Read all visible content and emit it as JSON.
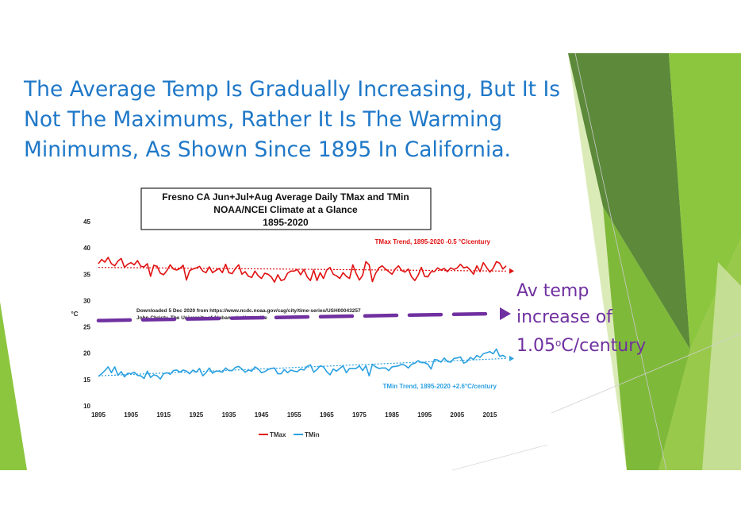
{
  "slide": {
    "headline_lines": [
      "The Average Temp Is Gradually Increasing, But It Is",
      "Not The Maximums, Rather It Is The Warming",
      "Minimums, As Shown Since 1895 In California."
    ],
    "callout": {
      "line1": "Av temp",
      "line2": "increase of",
      "line3_pre": "1.05",
      "line3_sup": "o",
      "line3_post": "C/century"
    },
    "colors": {
      "headline": "#1f78c8",
      "callout": "#7030a0",
      "tmax": "#e01010",
      "tmin": "#2aa0e0",
      "avg_dashes": "#7030a0",
      "deco_green": "#8cc63f"
    }
  },
  "chart_data": {
    "type": "line",
    "title_lines": [
      "Fresno CA Jun+Jul+Aug Average Daily TMax and TMin",
      "NOAA/NCEI Climate at a Glance",
      "1895-2020"
    ],
    "ylabel": "°C",
    "xlabel": "",
    "ylim": [
      10,
      45
    ],
    "xlim": [
      1895,
      2020
    ],
    "y_ticks": [
      10,
      15,
      20,
      25,
      30,
      35,
      40,
      45
    ],
    "x_ticks": [
      1895,
      1905,
      1915,
      1925,
      1935,
      1945,
      1955,
      1965,
      1975,
      1985,
      1995,
      2005,
      2015
    ],
    "x_tick_labels": [
      "1895",
      "1905",
      "1915",
      "1925",
      "1935",
      "1945",
      "1955",
      "1965",
      "1975",
      "1985",
      "1995",
      "2005",
      "2015"
    ],
    "legend": {
      "position": "bottom",
      "entries": [
        "TMax",
        "TMin"
      ]
    },
    "annotations": {
      "tmax_trend": "TMax Trend, 1895-2020 -0.5 °C/century",
      "tmin_trend": "TMin Trend, 1895-2020 +2.6°C/century",
      "download_line1": "Downloaded 5 Dec 2020 from https://www.ncdc.noaa.gov/cag/city/time-series/USH00043257",
      "download_line2": "John Christy, The University of Alabama in Huntsville"
    },
    "series": [
      {
        "name": "TMax",
        "x_start": 1895,
        "trend": [
          36.3,
          35.6
        ],
        "values": [
          37.0,
          37.8,
          37.3,
          38.2,
          37.0,
          36.6,
          37.5,
          38.0,
          36.3,
          36.9,
          37.2,
          36.8,
          37.6,
          36.5,
          36.4,
          37.0,
          34.6,
          36.7,
          36.5,
          35.2,
          34.9,
          35.7,
          36.8,
          36.0,
          35.8,
          36.1,
          36.7,
          33.9,
          35.7,
          36.0,
          36.2,
          36.5,
          35.6,
          35.3,
          36.4,
          35.3,
          35.7,
          36.1,
          35.3,
          36.9,
          35.3,
          35.1,
          36.1,
          36.8,
          35.0,
          35.5,
          34.6,
          34.4,
          35.6,
          34.7,
          34.2,
          35.2,
          35.0,
          34.5,
          33.5,
          34.9,
          33.8,
          34.0,
          35.2,
          35.6,
          35.6,
          35.9,
          34.9,
          35.9,
          34.5,
          33.8,
          35.8,
          33.8,
          35.3,
          34.2,
          35.8,
          36.3,
          35.0,
          34.7,
          34.2,
          35.3,
          34.6,
          34.2,
          36.8,
          35.2,
          33.9,
          34.8,
          37.4,
          36.8,
          33.6,
          35.2,
          36.2,
          36.6,
          36.0,
          35.5,
          35.0,
          36.0,
          36.6,
          35.7,
          35.4,
          36.0,
          34.5,
          33.8,
          34.8,
          36.3,
          34.6,
          34.5,
          35.5,
          35.5,
          36.2,
          35.8,
          36.1,
          35.5,
          36.2,
          35.9,
          36.2,
          36.9,
          36.2,
          36.4,
          35.8,
          35.0,
          36.6,
          35.5,
          37.2,
          36.3,
          35.4,
          36.1,
          37.4,
          37.1,
          36.0,
          36.6
        ]
      },
      {
        "name": "TMin",
        "x_start": 1895,
        "trend": [
          15.7,
          19.0
        ],
        "values": [
          15.6,
          16.1,
          16.7,
          17.4,
          16.3,
          17.4,
          15.8,
          16.5,
          15.5,
          16.2,
          16.1,
          16.4,
          15.8,
          15.7,
          15.2,
          16.6,
          15.4,
          15.9,
          15.7,
          15.1,
          16.1,
          16.3,
          16.0,
          16.7,
          16.8,
          16.4,
          16.8,
          16.6,
          16.1,
          16.8,
          16.4,
          17.1,
          15.7,
          16.3,
          17.2,
          16.2,
          16.6,
          16.6,
          16.4,
          17.2,
          16.7,
          16.7,
          17.3,
          17.5,
          17.0,
          16.4,
          16.8,
          16.6,
          17.4,
          17.0,
          16.3,
          16.5,
          16.9,
          17.1,
          17.2,
          16.1,
          16.1,
          16.9,
          16.3,
          16.8,
          16.6,
          16.5,
          17.0,
          16.8,
          17.5,
          17.8,
          16.4,
          16.9,
          17.6,
          17.4,
          16.5,
          15.9,
          17.0,
          16.6,
          17.1,
          17.6,
          16.3,
          17.1,
          17.1,
          17.1,
          17.6,
          16.7,
          17.6,
          15.7,
          17.9,
          17.4,
          17.1,
          17.2,
          17.2,
          16.7,
          17.4,
          17.5,
          17.6,
          17.9,
          17.7,
          17.2,
          17.9,
          18.1,
          18.6,
          18.2,
          18.2,
          17.9,
          17.0,
          18.8,
          18.7,
          18.3,
          19.1,
          18.4,
          18.3,
          19.0,
          19.1,
          19.3,
          18.1,
          18.4,
          19.2,
          18.8,
          19.6,
          19.2,
          19.9,
          20.1,
          20.3,
          19.9,
          20.8,
          19.4,
          19.6,
          19.2
        ]
      }
    ],
    "average_line": {
      "style": "dashed",
      "color": "#7030a0",
      "y_start": 26.2,
      "y_end": 27.5,
      "x_start": 1895,
      "x_end": 2020
    }
  }
}
